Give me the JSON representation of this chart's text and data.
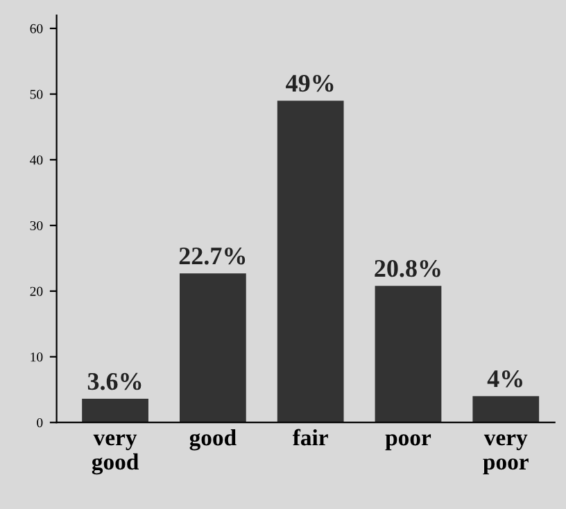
{
  "chart_data": {
    "type": "bar",
    "categories": [
      "very\ngood",
      "good",
      "fair",
      "poor",
      "very\npoor"
    ],
    "values": [
      3.6,
      22.7,
      49,
      20.8,
      4
    ],
    "value_labels": [
      "3.6%",
      "22.7%",
      "49%",
      "20.8%",
      "4%"
    ],
    "color": "#333333",
    "ylim": [
      0,
      62
    ],
    "yticks": [
      0,
      10,
      20,
      30,
      40,
      50,
      60
    ],
    "grid": false
  }
}
